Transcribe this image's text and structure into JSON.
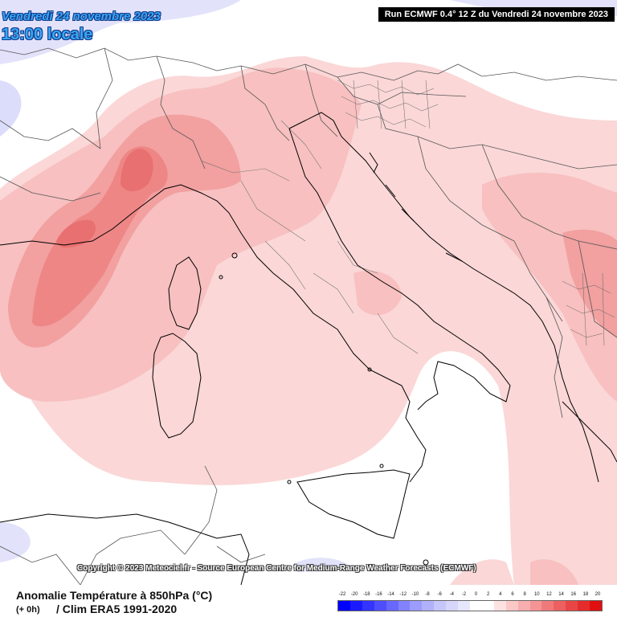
{
  "header": {
    "date": "Vendredi 24 novembre 2023",
    "time": "13:00 locale",
    "run": "Run ECMWF 0.4° 12 Z du Vendredi 24 novembre 2023"
  },
  "map": {
    "region": "Italy, Mediterranean and Balkans",
    "colors": {
      "land_border": "#555555",
      "coast": "#000000",
      "anom_plus_2": "#fbd7d7",
      "anom_plus_4": "#f8c0c0",
      "anom_plus_6": "#f4a2a2",
      "anom_plus_8": "#ef8585",
      "anom_plus_10": "#ea6f6f",
      "anom_minus_2": "#dcdcfb"
    }
  },
  "copyright": "Copyright © 2023 Meteociel.fr - Source European Centre for Medium-Range Weather Forecasts (ECMWF)",
  "footer": {
    "title": "Anomalie Température à 850hPa (°C)",
    "lead": "(+ 0h)",
    "clim": "/ Clim ERA5 1991-2020"
  },
  "legend": {
    "labels": [
      "-22",
      "-20",
      "-18",
      "-16",
      "-14",
      "-12",
      "-10",
      "-8",
      "-6",
      "-4",
      "-2",
      "0",
      "2",
      "4",
      "6",
      "8",
      "10",
      "12",
      "14",
      "16",
      "18",
      "20"
    ],
    "colors": [
      "#0000ff",
      "#1a1aff",
      "#3434ff",
      "#4e4eff",
      "#6868ff",
      "#8282ff",
      "#9c9cff",
      "#b0b0fb",
      "#c6c6fb",
      "#d6d6fb",
      "#e6e6fd",
      "#ffffff",
      "#ffffff",
      "#fde2e2",
      "#fbc8c8",
      "#f8aeae",
      "#f49494",
      "#f07a7a",
      "#ec6060",
      "#e84646",
      "#e42c2c",
      "#e01010"
    ]
  }
}
